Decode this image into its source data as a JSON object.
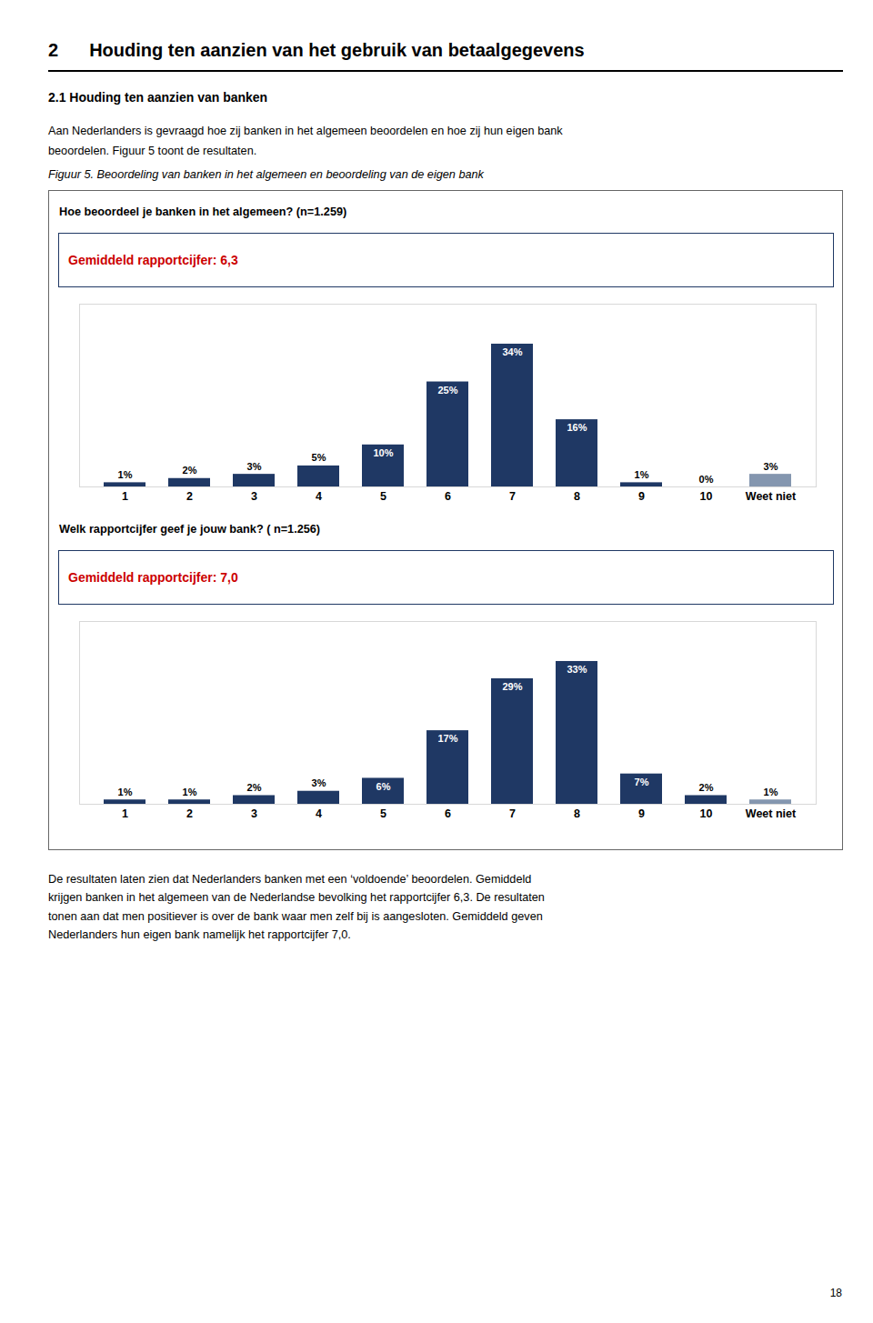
{
  "annotations": [
    "2",
    "Houding ten aanzien van het gebruik van betaalgegevens",
    "2.1 Houding ten aanzien van banken",
    "Aan Nederlanders is gevraagd hoe zij banken in het algemeen beoordelen en hoe zij hun eigen bank",
    "beoordelen. Figuur 5 toont de resultaten.",
    "Figuur 5. Beoordeling van banken in het algemeen en beoordeling van de eigen bank",
    "De resultaten laten zien dat Nederlanders banken met een ‘voldoende’ beoordelen. Gemiddeld",
    "krijgen banken in het algemeen van de Nederlandse bevolking het rapportcijfer 6,3. De resultaten",
    "tonen aan dat men positiever is over de bank waar men zelf bij is aangesloten. Gemiddeld geven",
    "Nederlanders hun eigen bank namelijk het rapportcijfer 7,0.",
    "18"
  ],
  "chart_data": [
    {
      "type": "bar",
      "title": "Hoe beoordeel je banken in het algemeen? (n=1.259)",
      "subtitle": "Gemiddeld rapportcijfer: 6,3",
      "categories": [
        "1",
        "2",
        "3",
        "4",
        "5",
        "6",
        "7",
        "8",
        "9",
        "10",
        "Weet niet"
      ],
      "values": [
        1,
        2,
        3,
        5,
        10,
        25,
        34,
        16,
        1,
        0,
        3
      ],
      "value_labels": [
        "1%",
        "2%",
        "3%",
        "5%",
        "10%",
        "25%",
        "34%",
        "16%",
        "1%",
        "0%",
        "3%"
      ],
      "colors": [
        "#1F3864",
        "#1F3864",
        "#1F3864",
        "#1F3864",
        "#1F3864",
        "#1F3864",
        "#1F3864",
        "#1F3864",
        "#1F3864",
        "#1F3864",
        "#8496AF"
      ],
      "ylim": [
        0,
        43.52
      ],
      "grid": false,
      "data_labels": true,
      "tick_labels": "x"
    },
    {
      "type": "bar",
      "title": "Welk rapportcijfer geef je jouw bank? ( n=1.256)",
      "subtitle": "Gemiddeld rapportcijfer: 7,0",
      "categories": [
        "1",
        "2",
        "3",
        "4",
        "5",
        "6",
        "7",
        "8",
        "9",
        "10",
        "Weet niet"
      ],
      "values": [
        1,
        1,
        2,
        3,
        6,
        17,
        29,
        33,
        7,
        2,
        1
      ],
      "value_labels": [
        "1%",
        "1%",
        "2%",
        "3%",
        "6%",
        "17%",
        "29%",
        "33%",
        "7%",
        "2%",
        "1%"
      ],
      "colors": [
        "#1F3864",
        "#1F3864",
        "#1F3864",
        "#1F3864",
        "#1F3864",
        "#1F3864",
        "#1F3864",
        "#1F3864",
        "#1F3864",
        "#1F3864",
        "#8496AF"
      ],
      "ylim": [
        0,
        42.24
      ],
      "grid": false,
      "data_labels": true,
      "tick_labels": "x"
    }
  ]
}
